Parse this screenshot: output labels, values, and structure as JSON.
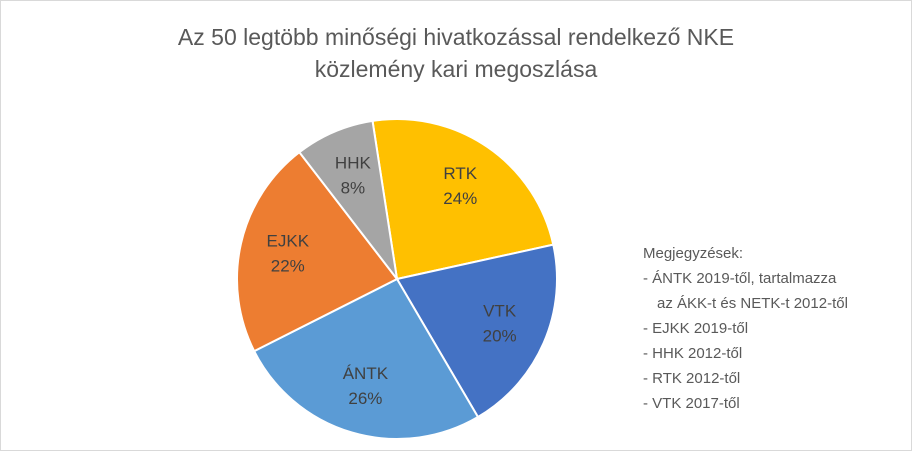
{
  "chart_data": {
    "type": "pie",
    "title": "Az 50 legtöbb minőségi hivatkozással rendelkező NKE közlemény kari megoszlása",
    "categories": [
      "RTK",
      "VTK",
      "ÁNTK",
      "EJKK",
      "HHK"
    ],
    "values": [
      24,
      20,
      26,
      22,
      8
    ],
    "value_labels": [
      "24%",
      "20%",
      "26%",
      "22%",
      "8%"
    ],
    "colors": [
      "#ffc000",
      "#4472c4",
      "#5b9bd5",
      "#ed7d31",
      "#a5a5a5"
    ]
  },
  "notes": {
    "heading": "Megjegyzések:",
    "lines": [
      "- ÁNTK 2019-től, tartalmazza",
      "az ÁKK-t és NETK-t 2012-től",
      "- EJKK 2019-től",
      "- HHK 2012-től",
      "- RTK 2012-től",
      "- VTK 2017-től"
    ]
  }
}
